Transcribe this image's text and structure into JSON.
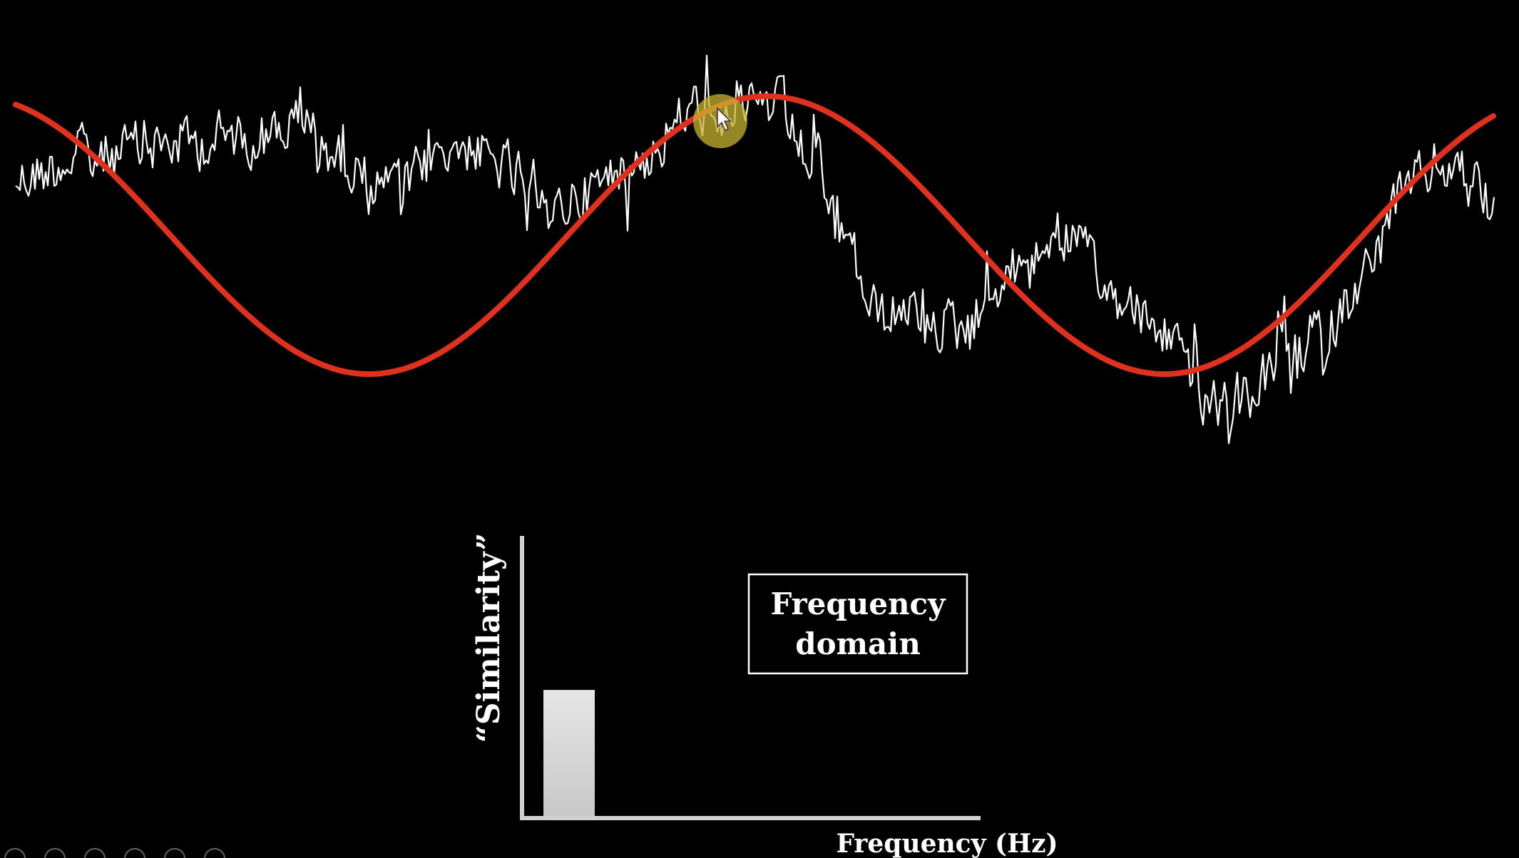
{
  "title_box": {
    "line1": "Frequency",
    "line2": "domain"
  },
  "axes": {
    "ylabel": "“Similarity”",
    "xlabel": "Frequency (Hz)"
  },
  "colors": {
    "background": "#000000",
    "noisy_signal": "#ffffff",
    "sine_wave": "#e0301e",
    "cursor_highlight": "#c8b432",
    "bar_fill": "#d9d9d9",
    "axis": "#d0d0d0"
  },
  "chart_data": {
    "type": "bar",
    "categories": [
      ""
    ],
    "values": [
      0.45
    ],
    "title": "Frequency domain",
    "xlabel": "Frequency (Hz)",
    "ylabel": "“Similarity”",
    "ylim": [
      0,
      1
    ]
  },
  "presentation_controls": [
    {
      "icon": "previous-slide-icon"
    },
    {
      "icon": "next-slide-icon"
    },
    {
      "icon": "pen-icon"
    },
    {
      "icon": "slides-grid-icon"
    },
    {
      "icon": "zoom-icon"
    },
    {
      "icon": "more-options-icon"
    }
  ]
}
